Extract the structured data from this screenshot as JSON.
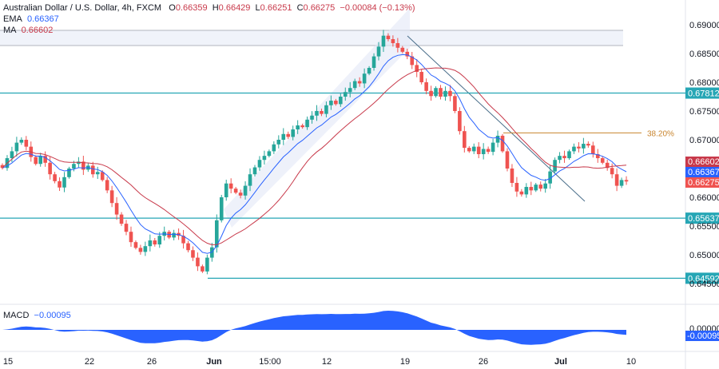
{
  "header": {
    "symbol": "Australian Dollar / U.S. Dollar, 4h, FXCM",
    "o_label": "O",
    "o": "0.66359",
    "h_label": "H",
    "h": "0.66429",
    "l_label": "L",
    "l": "0.66251",
    "c_label": "C",
    "c": "0.66275",
    "change": "−0.00084 (−0.13%)"
  },
  "indicators": {
    "ema_label": "EMA",
    "ema": "0.66367",
    "ma_label": "MA",
    "ma": "0.66602",
    "macd_label": "MACD",
    "macd": "−0.00095"
  },
  "colors": {
    "up": "#26a69a",
    "down": "#ef5350",
    "ema": "#2962ff",
    "ma": "#c8394a",
    "level": "#26a6b5",
    "fib": "#c8842e",
    "macd": "#2962ff"
  },
  "chart_data": {
    "type": "candlestick",
    "ylim": [
      0.641,
      0.6925
    ],
    "yticks": [
      "0.69000",
      "0.68500",
      "0.68000",
      "0.67500",
      "0.67000",
      "0.66000",
      "0.65500",
      "0.65000",
      "0.64500"
    ],
    "xticks": [
      "15",
      "22",
      "26",
      "Jun",
      "15:00",
      "12",
      "19",
      "26",
      "Jul",
      "10"
    ],
    "closes": [
      0.6651,
      0.6668,
      0.668,
      0.6695,
      0.67,
      0.6688,
      0.667,
      0.6658,
      0.6672,
      0.666,
      0.664,
      0.6628,
      0.6617,
      0.6635,
      0.665,
      0.6658,
      0.6662,
      0.6648,
      0.6655,
      0.664,
      0.6644,
      0.663,
      0.6612,
      0.659,
      0.657,
      0.6554,
      0.654,
      0.6522,
      0.6512,
      0.6505,
      0.6515,
      0.6525,
      0.6518,
      0.6533,
      0.654,
      0.653,
      0.6538,
      0.6533,
      0.652,
      0.6508,
      0.6495,
      0.648,
      0.6471,
      0.6495,
      0.6513,
      0.656,
      0.66,
      0.6624,
      0.6615,
      0.6608,
      0.6603,
      0.662,
      0.664,
      0.6652,
      0.6665,
      0.6672,
      0.668,
      0.6692,
      0.67,
      0.671,
      0.6705,
      0.6718,
      0.6725,
      0.6722,
      0.6735,
      0.6742,
      0.675,
      0.6745,
      0.676,
      0.6768,
      0.6762,
      0.6775,
      0.6783,
      0.679,
      0.6802,
      0.6798,
      0.6815,
      0.6825,
      0.6845,
      0.6862,
      0.6881,
      0.6875,
      0.6868,
      0.686,
      0.6853,
      0.6845,
      0.683,
      0.6818,
      0.68,
      0.6785,
      0.6776,
      0.679,
      0.6775,
      0.6785,
      0.6776,
      0.675,
      0.6715,
      0.6686,
      0.668,
      0.6688,
      0.6675,
      0.6684,
      0.6679,
      0.6695,
      0.6707,
      0.668,
      0.665,
      0.6625,
      0.661,
      0.6605,
      0.6618,
      0.6612,
      0.6622,
      0.6615,
      0.6624,
      0.6645,
      0.6665,
      0.6672,
      0.6668,
      0.668,
      0.6688,
      0.6685,
      0.6693,
      0.669,
      0.6675,
      0.6668,
      0.666,
      0.6651,
      0.664,
      0.662,
      0.663,
      0.66275
    ],
    "levels": [
      {
        "value": "0.67812"
      },
      {
        "value": "0.65637"
      },
      {
        "value": "0.64592"
      }
    ],
    "fib": {
      "label": "38.20%",
      "value": 0.6712
    },
    "price_labels": [
      {
        "value": "0.66602",
        "kind": "ma"
      },
      {
        "value": "0.66367",
        "kind": "ema"
      },
      {
        "value": "0.66275",
        "kind": "last"
      }
    ],
    "macd_labels": {
      "zero": "0.00000",
      "value": "-0.00095"
    }
  }
}
